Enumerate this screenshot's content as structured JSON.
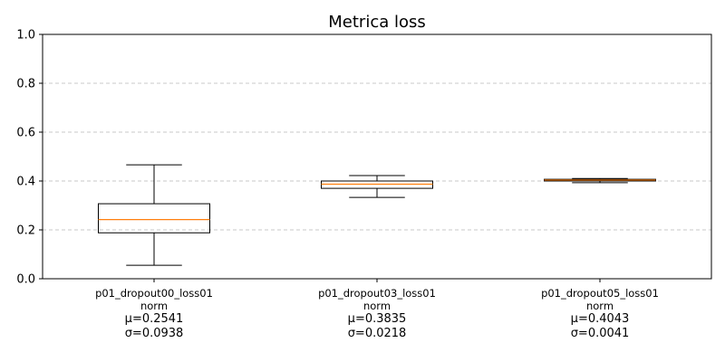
{
  "chart_data": {
    "type": "box",
    "title": "Metrica loss",
    "xlabel": "",
    "ylabel": "",
    "ylim": [
      0,
      1
    ],
    "yticks": [
      "0.0",
      "0.2",
      "0.4",
      "0.6",
      "0.8",
      "1.0"
    ],
    "grid": "y-dashed",
    "colors": {
      "box": "#000000",
      "median": "#ff7f0e",
      "grid": "#c8c8c8"
    },
    "series": [
      {
        "label": "p01_dropout00_loss01",
        "sublabel": "norm",
        "mean": "μ=0.2541",
        "std": "σ=0.0938",
        "whisker_low": 0.055,
        "q1": 0.188,
        "median": 0.242,
        "q3": 0.307,
        "whisker_high": 0.466
      },
      {
        "label": "p01_dropout03_loss01",
        "sublabel": "norm",
        "mean": "μ=0.3835",
        "std": "σ=0.0218",
        "whisker_low": 0.333,
        "q1": 0.37,
        "median": 0.387,
        "q3": 0.4,
        "whisker_high": 0.422
      },
      {
        "label": "p01_dropout05_loss01",
        "sublabel": "norm",
        "mean": "μ=0.4043",
        "std": "σ=0.0041",
        "whisker_low": 0.393,
        "q1": 0.4,
        "median": 0.404,
        "q3": 0.407,
        "whisker_high": 0.41
      }
    ]
  }
}
